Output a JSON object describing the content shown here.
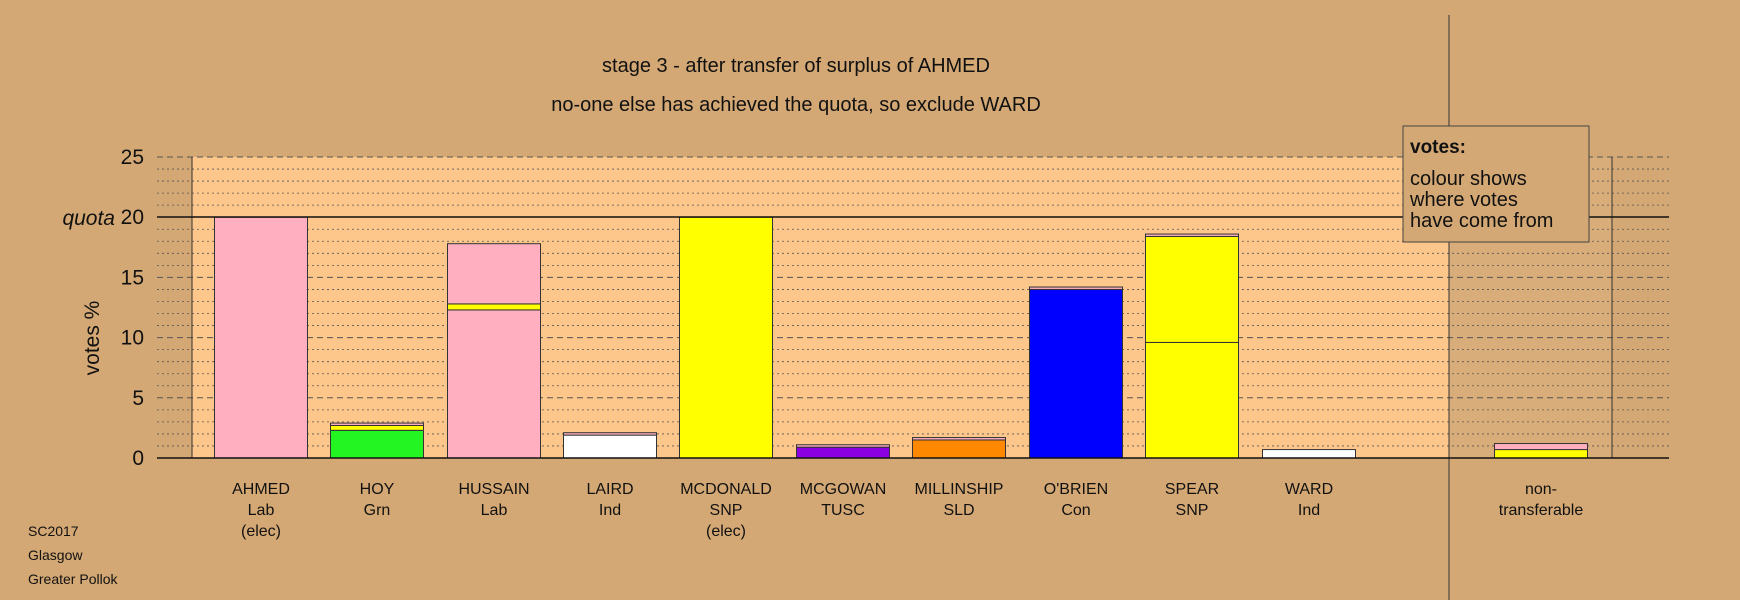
{
  "colors": {
    "background": "#d4a874",
    "plot_area": "#fdc68a",
    "nontransfer_area": "#d9ad79",
    "legend_box": "#d4a874"
  },
  "chart_data": {
    "type": "bar",
    "stacked": true,
    "title": "stage 3 - after transfer of surplus of AHMED",
    "subtitle": "no-one else has achieved the quota, so exclude WARD",
    "ylabel": "votes %",
    "ylim": [
      0,
      25
    ],
    "yticks": [
      0,
      5,
      10,
      15,
      20,
      25
    ],
    "quota": 20,
    "quota_label": "quota",
    "grid": true,
    "legend": {
      "placement": "top-right",
      "title": "votes:",
      "lines": [
        "colour shows",
        "where votes",
        "have come from"
      ]
    },
    "categories": [
      {
        "name": "AHMED",
        "party": "Lab",
        "note": "(elec)",
        "segments": [
          {
            "value": 20.0,
            "color": "#ffafc0"
          }
        ]
      },
      {
        "name": "HOY",
        "party": "Grn",
        "note": "",
        "segments": [
          {
            "value": 2.3,
            "color": "#22f522"
          },
          {
            "value": 0.4,
            "color": "#ffff00"
          },
          {
            "value": 0.2,
            "color": "#ffafc0"
          }
        ]
      },
      {
        "name": "HUSSAIN",
        "party": "Lab",
        "note": "",
        "segments": [
          {
            "value": 12.3,
            "color": "#ffafc0"
          },
          {
            "value": 0.5,
            "color": "#ffff00"
          },
          {
            "value": 5.0,
            "color": "#ffafc0"
          }
        ]
      },
      {
        "name": "LAIRD",
        "party": "Ind",
        "note": "",
        "segments": [
          {
            "value": 1.9,
            "color": "#ffffff"
          },
          {
            "value": 0.2,
            "color": "#ffafc0"
          }
        ]
      },
      {
        "name": "MCDONALD",
        "party": "SNP",
        "note": "(elec)",
        "segments": [
          {
            "value": 20.0,
            "color": "#ffff00"
          }
        ]
      },
      {
        "name": "MCGOWAN",
        "party": "TUSC",
        "note": "",
        "segments": [
          {
            "value": 0.9,
            "color": "#8a00e0"
          },
          {
            "value": 0.2,
            "color": "#ffafc0"
          }
        ]
      },
      {
        "name": "MILLINSHIP",
        "party": "SLD",
        "note": "",
        "segments": [
          {
            "value": 1.5,
            "color": "#ff8800"
          },
          {
            "value": 0.2,
            "color": "#ffafc0"
          }
        ]
      },
      {
        "name": "O'BRIEN",
        "party": "Con",
        "note": "",
        "segments": [
          {
            "value": 14.0,
            "color": "#0000ff"
          },
          {
            "value": 0.2,
            "color": "#ffafc0"
          }
        ]
      },
      {
        "name": "SPEAR",
        "party": "SNP",
        "note": "",
        "segments": [
          {
            "value": 9.6,
            "color": "#ffff00"
          },
          {
            "value": 8.8,
            "color": "#ffff00"
          },
          {
            "value": 0.2,
            "color": "#ffafc0"
          }
        ]
      },
      {
        "name": "WARD",
        "party": "Ind",
        "note": "",
        "segments": [
          {
            "value": 0.7,
            "color": "#ffffff"
          }
        ]
      },
      {
        "name": "non-",
        "party": "transferable",
        "note": "",
        "segments": [
          {
            "value": 0.7,
            "color": "#ffff00"
          },
          {
            "value": 0.5,
            "color": "#ffafc0"
          }
        ]
      }
    ]
  },
  "footer": {
    "line1": "SC2017",
    "line2": "Glasgow",
    "line3": "Greater Pollok"
  }
}
